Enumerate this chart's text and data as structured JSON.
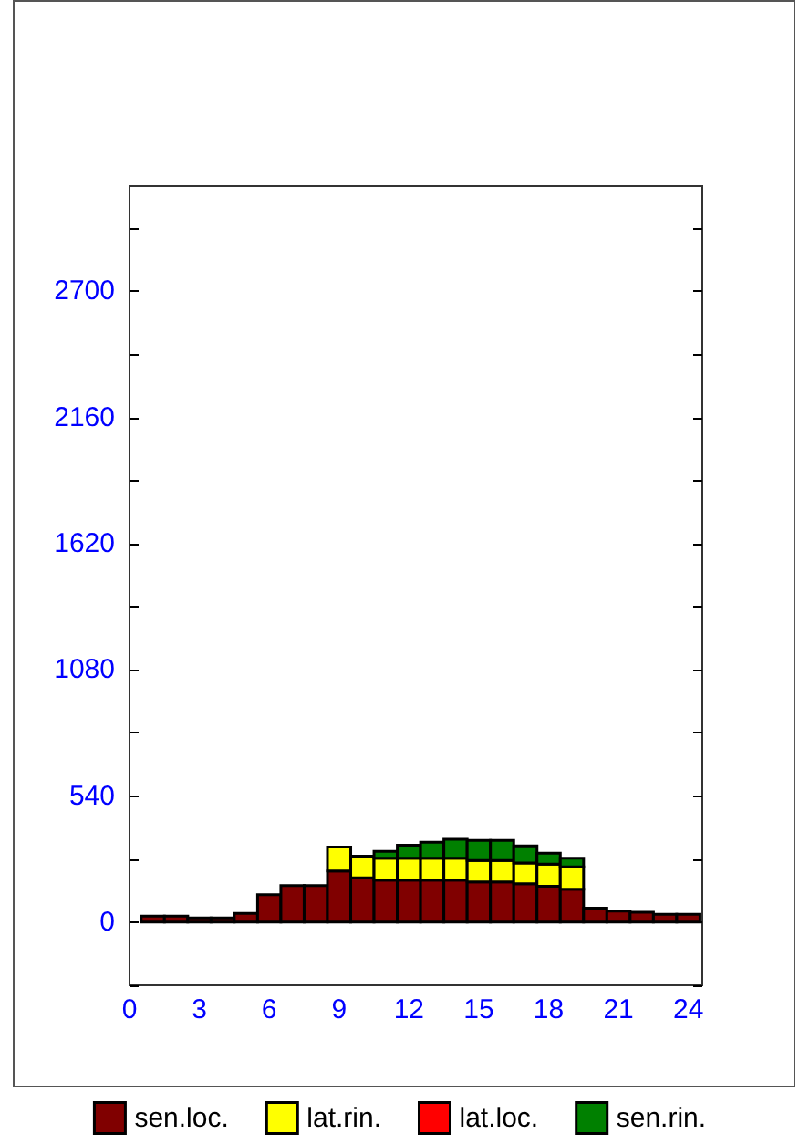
{
  "chart_data": {
    "type": "bar",
    "stacked": true,
    "x": [
      1,
      2,
      3,
      4,
      5,
      6,
      7,
      8,
      9,
      10,
      11,
      12,
      13,
      14,
      15,
      16,
      17,
      18,
      19,
      20,
      21,
      22,
      23,
      24
    ],
    "series": [
      {
        "name": "sen.loc.",
        "color": "#800000",
        "values": [
          26,
          26,
          18,
          18,
          37,
          117,
          157,
          157,
          219,
          190,
          180,
          180,
          180,
          180,
          172,
          172,
          164,
          154,
          141,
          60,
          47,
          42,
          34,
          34
        ]
      },
      {
        "name": "lat.rin.",
        "color": "#ffff00",
        "values": [
          0,
          0,
          0,
          0,
          0,
          0,
          0,
          0,
          102,
          92,
          94,
          94,
          94,
          94,
          92,
          92,
          89,
          94,
          96,
          0,
          0,
          0,
          0,
          0
        ]
      },
      {
        "name": "lat.loc.",
        "color": "#ff0000",
        "values": [
          0,
          0,
          0,
          0,
          0,
          0,
          0,
          0,
          0,
          0,
          0,
          0,
          0,
          0,
          0,
          0,
          0,
          0,
          0,
          0,
          0,
          0,
          0,
          0
        ]
      },
      {
        "name": "sen.rin.",
        "color": "#008000",
        "values": [
          0,
          0,
          0,
          0,
          0,
          0,
          0,
          0,
          0,
          0,
          29,
          55,
          68,
          81,
          86,
          86,
          73,
          47,
          37,
          0,
          0,
          0,
          0,
          0
        ]
      }
    ],
    "xlim": [
      0,
      24.6
    ],
    "xticks": [
      0,
      3,
      6,
      9,
      12,
      15,
      18,
      21,
      24
    ],
    "ylim": [
      -270,
      3150
    ],
    "yticks": [
      {
        "value": -270,
        "label": null
      },
      0,
      {
        "value": 270,
        "label": null
      },
      540,
      {
        "value": 810,
        "label": null
      },
      1080,
      {
        "value": 1350,
        "label": null
      },
      1620,
      {
        "value": 1890,
        "label": null
      },
      2160,
      {
        "value": 2430,
        "label": null
      },
      2700,
      {
        "value": 2970,
        "label": null
      }
    ],
    "grid": false,
    "legend": "bottom"
  }
}
